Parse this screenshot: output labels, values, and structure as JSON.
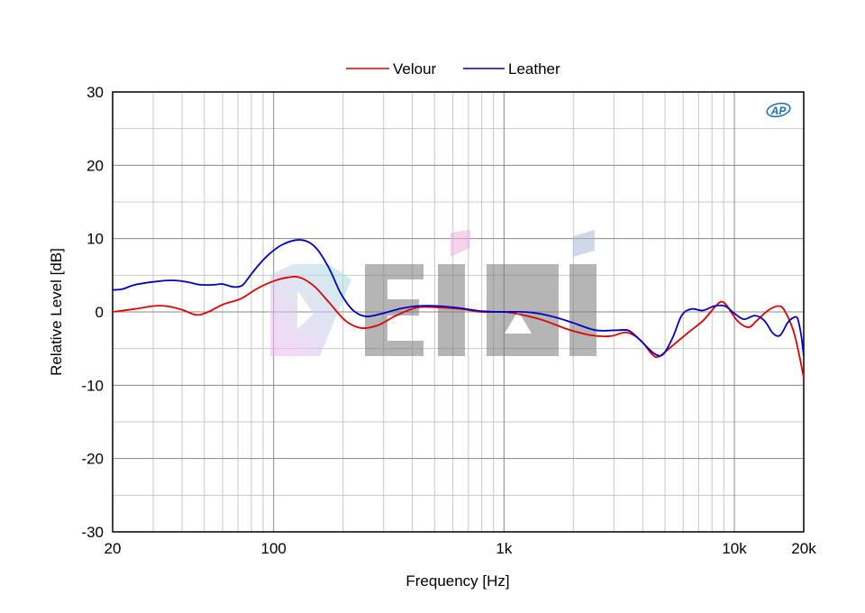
{
  "chart_data": {
    "type": "line",
    "title": "",
    "xlabel": "Frequency [Hz]",
    "ylabel": "Relative Level [dB]",
    "x_scale": "log",
    "xlim": [
      20,
      20000
    ],
    "ylim": [
      -30,
      30
    ],
    "grid": true,
    "legend_position": "top-center",
    "x_ticks": [
      {
        "value": 20,
        "label": "20"
      },
      {
        "value": 100,
        "label": "100"
      },
      {
        "value": 1000,
        "label": "1k"
      },
      {
        "value": 10000,
        "label": "10k"
      },
      {
        "value": 20000,
        "label": "20k"
      }
    ],
    "y_ticks": [
      {
        "value": 30,
        "label": "30"
      },
      {
        "value": 20,
        "label": "20"
      },
      {
        "value": 10,
        "label": "10"
      },
      {
        "value": 0,
        "label": "0"
      },
      {
        "value": -10,
        "label": "-10"
      },
      {
        "value": -20,
        "label": "-20"
      },
      {
        "value": -30,
        "label": "-30"
      }
    ],
    "series": [
      {
        "name": "Velour",
        "color": "#e00000",
        "points": [
          [
            20,
            0
          ],
          [
            25,
            0.4
          ],
          [
            30,
            0.8
          ],
          [
            34,
            0.8
          ],
          [
            40,
            0.3
          ],
          [
            46,
            -0.4
          ],
          [
            52,
            0
          ],
          [
            60,
            1.0
          ],
          [
            72,
            1.8
          ],
          [
            85,
            3.2
          ],
          [
            100,
            4.2
          ],
          [
            115,
            4.7
          ],
          [
            130,
            4.7
          ],
          [
            150,
            3.5
          ],
          [
            175,
            1.2
          ],
          [
            205,
            -1.2
          ],
          [
            240,
            -2.2
          ],
          [
            285,
            -1.8
          ],
          [
            340,
            -0.5
          ],
          [
            420,
            0.6
          ],
          [
            520,
            0.6
          ],
          [
            650,
            0.4
          ],
          [
            800,
            0
          ],
          [
            1000,
            0
          ],
          [
            1200,
            -0.4
          ],
          [
            1500,
            -1.2
          ],
          [
            1900,
            -2.4
          ],
          [
            2400,
            -3.2
          ],
          [
            2900,
            -3.3
          ],
          [
            3400,
            -2.8
          ],
          [
            3900,
            -3.8
          ],
          [
            4400,
            -5.8
          ],
          [
            4700,
            -6.1
          ],
          [
            5300,
            -4.8
          ],
          [
            6200,
            -3
          ],
          [
            7300,
            -1.2
          ],
          [
            8300,
            0.8
          ],
          [
            8800,
            1.4
          ],
          [
            9300,
            0.8
          ],
          [
            10300,
            -1.2
          ],
          [
            11500,
            -2.1
          ],
          [
            12500,
            -1.2
          ],
          [
            14000,
            0.2
          ],
          [
            15500,
            0.8
          ],
          [
            16500,
            0.2
          ],
          [
            18000,
            -2.5
          ],
          [
            19000,
            -5.5
          ],
          [
            20000,
            -9
          ]
        ]
      },
      {
        "name": "Leather",
        "color": "#0000c0",
        "points": [
          [
            20,
            3
          ],
          [
            22,
            3.1
          ],
          [
            25,
            3.7
          ],
          [
            30,
            4.1
          ],
          [
            36,
            4.3
          ],
          [
            42,
            4.1
          ],
          [
            48,
            3.7
          ],
          [
            55,
            3.7
          ],
          [
            60,
            3.8
          ],
          [
            67,
            3.4
          ],
          [
            73,
            3.6
          ],
          [
            78,
            4.7
          ],
          [
            85,
            6.2
          ],
          [
            95,
            7.8
          ],
          [
            108,
            9.1
          ],
          [
            125,
            9.8
          ],
          [
            140,
            9.6
          ],
          [
            155,
            8.5
          ],
          [
            175,
            5.8
          ],
          [
            195,
            2.6
          ],
          [
            220,
            0.3
          ],
          [
            250,
            -0.6
          ],
          [
            290,
            -0.3
          ],
          [
            350,
            0.4
          ],
          [
            420,
            0.8
          ],
          [
            520,
            0.8
          ],
          [
            650,
            0.5
          ],
          [
            800,
            0.1
          ],
          [
            1000,
            0
          ],
          [
            1200,
            0
          ],
          [
            1400,
            -0.2
          ],
          [
            1700,
            -0.8
          ],
          [
            2000,
            -1.5
          ],
          [
            2500,
            -2.5
          ],
          [
            3100,
            -2.5
          ],
          [
            3500,
            -2.6
          ],
          [
            4000,
            -4.2
          ],
          [
            4500,
            -5.7
          ],
          [
            4900,
            -5.8
          ],
          [
            5400,
            -3.5
          ],
          [
            5900,
            -0.5
          ],
          [
            6500,
            0.4
          ],
          [
            7300,
            0.2
          ],
          [
            8200,
            0.8
          ],
          [
            9100,
            0.8
          ],
          [
            10000,
            -0.2
          ],
          [
            11000,
            -1.0
          ],
          [
            12300,
            -0.5
          ],
          [
            13500,
            -1.2
          ],
          [
            14700,
            -2.9
          ],
          [
            15800,
            -3.2
          ],
          [
            17000,
            -1.5
          ],
          [
            18000,
            -0.8
          ],
          [
            18800,
            -0.9
          ],
          [
            19500,
            -3.2
          ],
          [
            20000,
            -6
          ]
        ]
      }
    ],
    "annotations": [
      {
        "text": "AP",
        "kind": "logo",
        "position": "top-right"
      },
      {
        "text": "DEiNi",
        "kind": "watermark",
        "position": "center"
      }
    ]
  }
}
